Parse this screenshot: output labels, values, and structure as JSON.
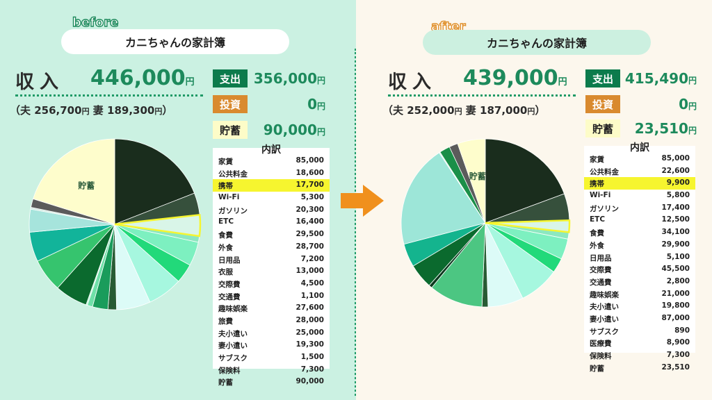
{
  "arrow_color": "#f0901d",
  "highlight_color": "#f6f52f",
  "chart_data": [
    {
      "type": "pie",
      "title": "before",
      "categories": [
        "家賃",
        "公共料金",
        "携帯",
        "Wi-Fi",
        "ガソリン",
        "ETC",
        "食費",
        "外食",
        "日用品",
        "衣服",
        "交際費",
        "交通費",
        "趣味娯楽",
        "旅費",
        "夫小遣い",
        "妻小遣い",
        "サブスク",
        "保険料",
        "貯蓄"
      ],
      "values": [
        85000,
        18600,
        17700,
        5300,
        20300,
        16400,
        29500,
        28700,
        7200,
        13000,
        4500,
        1100,
        27600,
        28000,
        25000,
        19300,
        1500,
        7300,
        90000
      ],
      "colors": [
        "#1a2d1d",
        "#36503c",
        "#d9f5e8",
        "#8ce8c0",
        "#7df0c0",
        "#22d97a",
        "#a6f7df",
        "#dcfbf7",
        "#275b34",
        "#1a9c5b",
        "#6fe0a8",
        "#b4f4d4",
        "#0b6a2e",
        "#36c46e",
        "#12b49a",
        "#a6e4dc",
        "#cfe8df",
        "#5b5b5b",
        "#fefdcc"
      ],
      "slice_labels": [
        "",
        "",
        "",
        "",
        "",
        "",
        "",
        "",
        "",
        "",
        "",
        "",
        "",
        "",
        "",
        "",
        "",
        "",
        "貯蓄"
      ],
      "highlight": "携帯"
    },
    {
      "type": "pie",
      "title": "after",
      "categories": [
        "家賃",
        "公共料金",
        "携帯",
        "Wi-Fi",
        "ガソリン",
        "ETC",
        "食費",
        "外食",
        "日用品",
        "交際費",
        "交通費",
        "趣味娯楽",
        "夫小遣い",
        "妻小遣い",
        "サブスク",
        "医療費",
        "保険料",
        "貯蓄"
      ],
      "values": [
        85000,
        22600,
        9900,
        5800,
        17400,
        12500,
        34100,
        29900,
        5100,
        45500,
        2800,
        21000,
        19800,
        87000,
        890,
        8900,
        7300,
        23510
      ],
      "colors": [
        "#1a2d1d",
        "#36503c",
        "#d9f5e8",
        "#8ce8c0",
        "#7df0c0",
        "#22d97a",
        "#a6f7df",
        "#dcfbf7",
        "#275b34",
        "#4cc682",
        "#0b3a1e",
        "#0b6a2e",
        "#14b48e",
        "#9de6d8",
        "#d0f0e6",
        "#1a8f48",
        "#5b5b5b",
        "#fefdcc"
      ],
      "slice_labels": [
        "",
        "",
        "",
        "",
        "",
        "",
        "",
        "",
        "",
        "",
        "",
        "",
        "",
        "",
        "",
        "",
        "",
        "貯蓄"
      ],
      "highlight": "携帯"
    }
  ],
  "before": {
    "tag": "before",
    "title": "カニちゃんの家計簿",
    "income_label": "収入",
    "income_value": "446,000",
    "unit": "円",
    "split": {
      "open": "（夫 ",
      "husband": "256,700",
      "wife_label": " 妻 ",
      "wife": "189,300",
      "close": "）"
    },
    "summary": [
      {
        "label": "支出",
        "value": "356,000"
      },
      {
        "label": "投資",
        "value": "0"
      },
      {
        "label": "貯蓄",
        "value": "90,000"
      }
    ],
    "breakdown_title": "内訳",
    "rows": [
      {
        "name": "家賃",
        "value": "85,000"
      },
      {
        "name": "公共料金",
        "value": "18,600"
      },
      {
        "name": "携帯",
        "value": "17,700"
      },
      {
        "name": "Wi-Fi",
        "value": "5,300"
      },
      {
        "name": "ガソリン",
        "value": "20,300"
      },
      {
        "name": "ETC",
        "value": "16,400"
      },
      {
        "name": "食費",
        "value": "29,500"
      },
      {
        "name": "外食",
        "value": "28,700"
      },
      {
        "name": "日用品",
        "value": "7,200"
      },
      {
        "name": "衣服",
        "value": "13,000"
      },
      {
        "name": "交際費",
        "value": "4,500"
      },
      {
        "name": "交通費",
        "value": "1,100"
      },
      {
        "name": "趣味娯楽",
        "value": "27,600"
      },
      {
        "name": "旅費",
        "value": "28,000"
      },
      {
        "name": "夫小遣い",
        "value": "25,000"
      },
      {
        "name": "妻小遣い",
        "value": "19,300"
      },
      {
        "name": "サブスク",
        "value": "1,500"
      },
      {
        "name": "保険料",
        "value": "7,300"
      },
      {
        "name": "貯蓄",
        "value": "90,000"
      }
    ]
  },
  "after": {
    "tag": "after",
    "title": "カニちゃんの家計簿",
    "income_label": "収入",
    "income_value": "439,000",
    "unit": "円",
    "split": {
      "open": "（夫 ",
      "husband": "252,000",
      "wife_label": " 妻 ",
      "wife": "187,000",
      "close": "）"
    },
    "summary": [
      {
        "label": "支出",
        "value": "415,490"
      },
      {
        "label": "投資",
        "value": "0"
      },
      {
        "label": "貯蓄",
        "value": "23,510"
      }
    ],
    "breakdown_title": "内訳",
    "rows": [
      {
        "name": "家賃",
        "value": "85,000"
      },
      {
        "name": "公共料金",
        "value": "22,600"
      },
      {
        "name": "携帯",
        "value": "9,900"
      },
      {
        "name": "Wi-Fi",
        "value": "5,800"
      },
      {
        "name": "ガソリン",
        "value": "17,400"
      },
      {
        "name": "ETC",
        "value": "12,500"
      },
      {
        "name": "食費",
        "value": "34,100"
      },
      {
        "name": "外食",
        "value": "29,900"
      },
      {
        "name": "日用品",
        "value": "5,100"
      },
      {
        "name": "交際費",
        "value": "45,500"
      },
      {
        "name": "交通費",
        "value": "2,800"
      },
      {
        "name": "趣味娯楽",
        "value": "21,000"
      },
      {
        "name": "夫小遣い",
        "value": "19,800"
      },
      {
        "name": "妻小遣い",
        "value": "87,000"
      },
      {
        "name": "サブスク",
        "value": "890"
      },
      {
        "name": "医療費",
        "value": "8,900"
      },
      {
        "name": "保険料",
        "value": "7,300"
      },
      {
        "name": "貯蓄",
        "value": "23,510"
      }
    ]
  }
}
